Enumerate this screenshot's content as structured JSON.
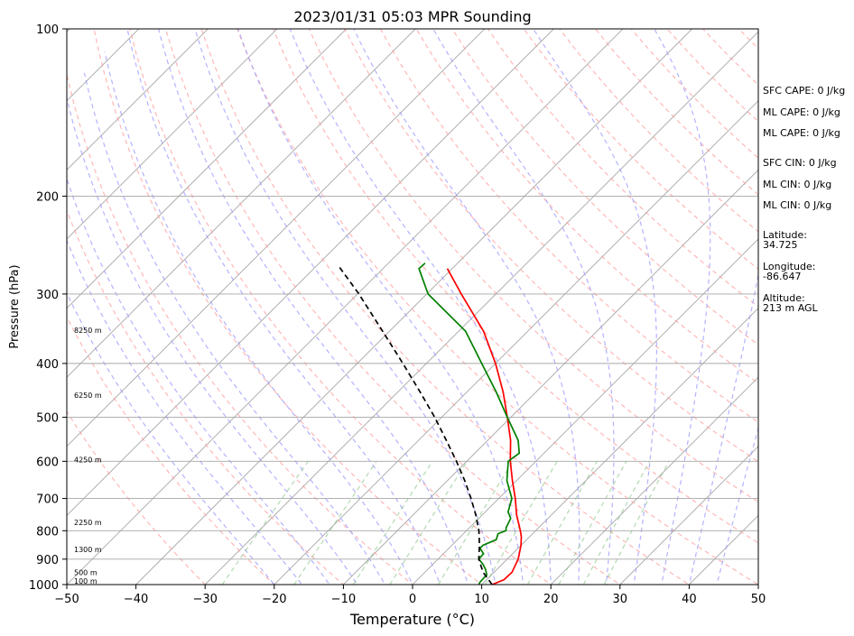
{
  "chart_data": {
    "type": "skew-t",
    "title": "2023/01/31 05:03 MPR Sounding",
    "xlabel": "Temperature (°C)",
    "ylabel": "Pressure (hPa)",
    "xlim": [
      -50,
      50
    ],
    "ylim": [
      1000,
      100
    ],
    "y_scale": "log",
    "x_ticks": [
      -50,
      -40,
      -30,
      -20,
      -10,
      0,
      10,
      20,
      30,
      40,
      50
    ],
    "x_tick_labels": [
      "−50",
      "−40",
      "−30",
      "−20",
      "−10",
      "0",
      "10",
      "20",
      "30",
      "40",
      "50"
    ],
    "y_ticks": [
      100,
      200,
      300,
      400,
      500,
      600,
      700,
      800,
      900,
      1000
    ],
    "y_tick_labels": [
      "100",
      "200",
      "300",
      "400",
      "500",
      "600",
      "700",
      "800",
      "900",
      "1000"
    ],
    "grid": true,
    "height_labels": [
      {
        "label": "100 m",
        "p": 988
      },
      {
        "label": "500 m",
        "p": 955
      },
      {
        "label": "1300 m",
        "p": 867
      },
      {
        "label": "2250 m",
        "p": 775
      },
      {
        "label": "4250 m",
        "p": 598
      },
      {
        "label": "6250 m",
        "p": 458
      },
      {
        "label": "8250 m",
        "p": 350
      }
    ],
    "series": [
      {
        "kind": "temperature",
        "color": "#ff0000",
        "points": [
          [
            1000,
            11.5
          ],
          [
            980,
            12.5
          ],
          [
            950,
            12.6
          ],
          [
            920,
            12.0
          ],
          [
            900,
            11.6
          ],
          [
            850,
            10.0
          ],
          [
            820,
            8.8
          ],
          [
            800,
            7.8
          ],
          [
            780,
            6.7
          ],
          [
            750,
            5.0
          ],
          [
            700,
            2.4
          ],
          [
            650,
            -0.6
          ],
          [
            600,
            -3.7
          ],
          [
            550,
            -6.7
          ],
          [
            500,
            -10.5
          ],
          [
            450,
            -14.8
          ],
          [
            400,
            -20.0
          ],
          [
            350,
            -26.4
          ],
          [
            300,
            -35.0
          ],
          [
            270,
            -40.7
          ]
        ]
      },
      {
        "kind": "dewpoint",
        "color": "#008000",
        "points": [
          [
            1000,
            9.6
          ],
          [
            990,
            9.4
          ],
          [
            960,
            9.3
          ],
          [
            940,
            8.4
          ],
          [
            920,
            7.3
          ],
          [
            900,
            5.9
          ],
          [
            880,
            5.8
          ],
          [
            860,
            4.5
          ],
          [
            850,
            4.5
          ],
          [
            830,
            5.6
          ],
          [
            810,
            5.0
          ],
          [
            800,
            5.7
          ],
          [
            790,
            5.3
          ],
          [
            760,
            4.6
          ],
          [
            740,
            3.3
          ],
          [
            700,
            1.9
          ],
          [
            650,
            -1.4
          ],
          [
            600,
            -4.0
          ],
          [
            580,
            -3.6
          ],
          [
            550,
            -5.6
          ],
          [
            500,
            -10.5
          ],
          [
            450,
            -15.8
          ],
          [
            400,
            -22.0
          ],
          [
            350,
            -29.0
          ],
          [
            300,
            -39.8
          ],
          [
            270,
            -44.8
          ],
          [
            264,
            -44.7
          ]
        ]
      },
      {
        "kind": "parcel",
        "color": "#000000",
        "points": [
          [
            1000,
            11.5
          ],
          [
            950,
            8.4
          ],
          [
            900,
            5.9
          ],
          [
            850,
            4.0
          ],
          [
            800,
            1.8
          ],
          [
            750,
            -0.9
          ],
          [
            700,
            -4.0
          ],
          [
            650,
            -7.5
          ],
          [
            600,
            -11.5
          ],
          [
            550,
            -16.0
          ],
          [
            500,
            -21.0
          ],
          [
            450,
            -26.8
          ],
          [
            400,
            -33.4
          ],
          [
            350,
            -41.0
          ],
          [
            300,
            -49.8
          ],
          [
            268,
            -56.6
          ]
        ]
      }
    ],
    "reference_lines": {
      "dry_adiabat_color": "#ff9f9f",
      "moist_adiabat_color": "#9a9aff",
      "mixing_ratio_color": "#7fbf7f",
      "isotherm_color": "#a6a6a6"
    }
  },
  "side_panel": {
    "sfc_cape": "SFC CAPE: 0 J/kg",
    "ml_cape_1": "ML CAPE: 0 J/kg",
    "ml_cape_2": "ML CAPE: 0 J/kg",
    "sfc_cin": "SFC CIN: 0 J/kg",
    "ml_cin_1": "ML CIN: 0 J/kg",
    "ml_cin_2": "ML CIN: 0 J/kg",
    "latitude": "Latitude:\n34.725",
    "longitude": "Longitude:\n-86.647",
    "altitude": "Altitude:\n213 m AGL"
  }
}
